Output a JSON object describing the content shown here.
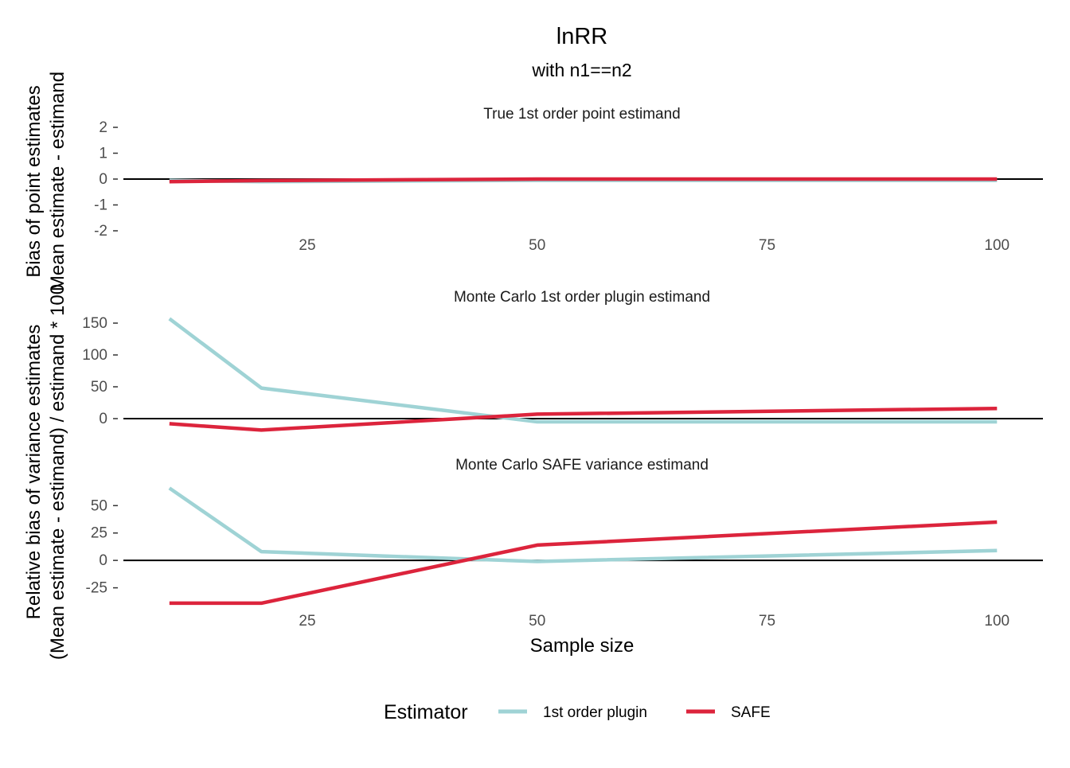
{
  "title": "lnRR",
  "subtitle": "with n1==n2",
  "xlabel": "Sample size",
  "ylabel_top": [
    "Bias of point estimates",
    "Mean estimate - estimand"
  ],
  "ylabel_bottom": [
    "Relative bias of variance estimates",
    "(Mean estimate - estimand) / estimand * 100"
  ],
  "legend": {
    "title": "Estimator",
    "entries": [
      {
        "label": "1st order plugin",
        "color": "#9fd3d5"
      },
      {
        "label": "SAFE",
        "color": "#dc243c"
      }
    ]
  },
  "chart_data": [
    {
      "type": "line",
      "title": "True 1st order point estimand",
      "x": [
        10,
        20,
        50,
        100
      ],
      "xlim": [
        5,
        105
      ],
      "ylim": [
        -2,
        2
      ],
      "x_ticks": [
        25,
        50,
        75,
        100
      ],
      "y_ticks": [
        -2,
        -1,
        0,
        1,
        2
      ],
      "show_x_ticks": true,
      "series": [
        {
          "name": "1st order plugin",
          "values": [
            -0.05,
            -0.1,
            -0.05,
            -0.05
          ]
        },
        {
          "name": "SAFE",
          "values": [
            -0.1,
            -0.06,
            0.0,
            0.0
          ]
        }
      ]
    },
    {
      "type": "line",
      "title": "Monte Carlo 1st order plugin estimand",
      "x": [
        10,
        20,
        50,
        100
      ],
      "xlim": [
        5,
        105
      ],
      "ylim": [
        -20,
        165
      ],
      "x_ticks": [
        25,
        50,
        75,
        100
      ],
      "y_ticks": [
        0,
        50,
        100,
        150
      ],
      "show_x_ticks": false,
      "series": [
        {
          "name": "1st order plugin",
          "values": [
            157,
            48,
            -5,
            -5
          ]
        },
        {
          "name": "SAFE",
          "values": [
            -8,
            -18,
            7,
            16
          ]
        }
      ]
    },
    {
      "type": "line",
      "title": "Monte Carlo SAFE variance estimand",
      "x": [
        10,
        20,
        50,
        100
      ],
      "xlim": [
        5,
        105
      ],
      "ylim": [
        -42,
        72
      ],
      "x_ticks": [
        25,
        50,
        75,
        100
      ],
      "y_ticks": [
        -25,
        0,
        25,
        50
      ],
      "show_x_ticks": true,
      "series": [
        {
          "name": "1st order plugin",
          "values": [
            66,
            8,
            -1,
            9
          ]
        },
        {
          "name": "SAFE",
          "values": [
            -39,
            -39,
            14,
            35
          ]
        }
      ]
    }
  ]
}
